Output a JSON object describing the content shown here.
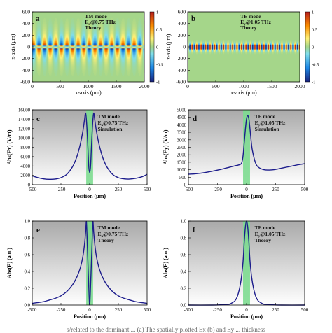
{
  "chart_data": [
    {
      "id": "a",
      "type": "heatmap",
      "panel_letter": "a",
      "annotation": [
        "TM mode",
        "Ex@0.75 THz",
        "Theory"
      ],
      "xlabel": "x-axis (μm)",
      "ylabel": "z-axis (μm)",
      "xlim": [
        0,
        2000
      ],
      "ylim": [
        -600,
        600
      ],
      "xticks": [
        "0",
        "500",
        "1000",
        "1500",
        "2000"
      ],
      "yticks": [
        "600",
        "400",
        "200",
        "0",
        "-200",
        "-400",
        "-600"
      ],
      "colorbar": {
        "min": -1,
        "max": 1,
        "ticks": [
          "1",
          "0.5",
          "0",
          "-0.5",
          "-1"
        ]
      },
      "field": {
        "period_um": 200,
        "phase_um": 20,
        "decay_um": 120,
        "core_um": 20,
        "profile": "antisymmetric"
      }
    },
    {
      "id": "b",
      "type": "heatmap",
      "panel_letter": "b",
      "annotation": [
        "TE mode",
        "Ey@1.05 THz",
        "Theory"
      ],
      "xlabel": "x-axis (μm)",
      "ylabel": "z-axis (μm)",
      "xlim": [
        0,
        2000
      ],
      "ylim": [
        -600,
        600
      ],
      "xticks": [
        "0",
        "500",
        "1000",
        "1500",
        "2000"
      ],
      "yticks": [
        "600",
        "400",
        "200",
        "0",
        "-200",
        "-400",
        "-600"
      ],
      "colorbar": {
        "min": -1,
        "max": 1,
        "ticks": [
          "1",
          "0.5",
          "0",
          "-0.5",
          "-1"
        ]
      },
      "field": {
        "period_um": 80,
        "phase_um": 0,
        "decay_um": 25,
        "core_um": 30,
        "profile": "symmetric"
      }
    },
    {
      "id": "c",
      "type": "line",
      "panel_letter": "c",
      "annotation": [
        "TM mode",
        "Ex@0.75 THz",
        "Simulation"
      ],
      "xlabel": "Position (μm)",
      "ylabel": "Abs(Ex) (V/m)",
      "xlim": [
        -500,
        500
      ],
      "ylim": [
        0,
        16000
      ],
      "xticks": [
        "-500",
        "-250",
        "0",
        "250",
        "500"
      ],
      "yticks": [
        "0",
        "2000",
        "4000",
        "6000",
        "8000",
        "10000",
        "12000",
        "14000",
        "16000"
      ],
      "highlight_x": [
        -30,
        30
      ],
      "x": [
        -500,
        -450,
        -400,
        -350,
        -300,
        -250,
        -200,
        -150,
        -120,
        -100,
        -80,
        -60,
        -45,
        -35,
        -25,
        -15,
        -8,
        0,
        8,
        15,
        25,
        35,
        45,
        60,
        80,
        100,
        120,
        150,
        200,
        250,
        300,
        350,
        400,
        450,
        500
      ],
      "y": [
        1900,
        1500,
        1250,
        1150,
        1200,
        1500,
        2200,
        3800,
        5400,
        6900,
        8800,
        11300,
        13800,
        15300,
        12700,
        7800,
        4000,
        2600,
        4000,
        7800,
        12700,
        15300,
        13800,
        11300,
        8800,
        6900,
        5400,
        3800,
        2200,
        1500,
        1250,
        1200,
        1350,
        1650,
        2200
      ]
    },
    {
      "id": "d",
      "type": "line",
      "panel_letter": "d",
      "annotation": [
        "TE mode",
        "Ey@1.05 THz",
        "Simulation"
      ],
      "xlabel": "Position (μm)",
      "ylabel": "Abs(Ey) (V/m)",
      "xlim": [
        -500,
        500
      ],
      "ylim": [
        0,
        5000
      ],
      "xticks": [
        "-500",
        "-250",
        "0",
        "250",
        "500"
      ],
      "yticks": [
        "0",
        "500",
        "1000",
        "1500",
        "2000",
        "2500",
        "3000",
        "3500",
        "4000",
        "4500",
        "5000"
      ],
      "highlight_x": [
        -30,
        30
      ],
      "x": [
        -500,
        -450,
        -400,
        -350,
        -300,
        -250,
        -200,
        -150,
        -100,
        -75,
        -50,
        -40,
        -30,
        -20,
        -10,
        0,
        10,
        20,
        30,
        40,
        50,
        75,
        100,
        150,
        200,
        250,
        300,
        350,
        400,
        450,
        500
      ],
      "y": [
        700,
        720,
        760,
        820,
        890,
        970,
        1060,
        1160,
        1260,
        1300,
        1370,
        1500,
        1950,
        2800,
        3700,
        4400,
        4620,
        4400,
        3700,
        2900,
        2300,
        1500,
        1180,
        1000,
        980,
        1020,
        1100,
        1180,
        1260,
        1340,
        1400
      ]
    },
    {
      "id": "e",
      "type": "line",
      "panel_letter": "e",
      "annotation": [
        "TM mode",
        "Ex@0.75 THz",
        "Theory"
      ],
      "xlabel": "Position (μm)",
      "ylabel": "Abs(E) (a.u.)",
      "xlim": [
        -500,
        500
      ],
      "ylim": [
        0,
        1.0
      ],
      "xticks": [
        "-500",
        "-250",
        "0",
        "250",
        "500"
      ],
      "yticks": [
        "0.0",
        "0.2",
        "0.4",
        "0.6",
        "0.8",
        "1.0"
      ],
      "highlight_x": [
        -30,
        30
      ],
      "x": [
        -500,
        -450,
        -400,
        -350,
        -300,
        -250,
        -200,
        -150,
        -120,
        -100,
        -80,
        -60,
        -45,
        -35,
        -28,
        -20,
        -12,
        -5,
        0,
        5,
        12,
        20,
        28,
        35,
        45,
        60,
        80,
        100,
        120,
        150,
        200,
        250,
        300,
        350,
        400,
        450,
        500
      ],
      "y": [
        0.02,
        0.03,
        0.04,
        0.06,
        0.08,
        0.11,
        0.16,
        0.24,
        0.31,
        0.37,
        0.45,
        0.57,
        0.72,
        0.87,
        0.99,
        0.7,
        0.38,
        0.12,
        0.0,
        0.12,
        0.38,
        0.7,
        0.99,
        0.87,
        0.72,
        0.57,
        0.45,
        0.37,
        0.31,
        0.24,
        0.16,
        0.11,
        0.08,
        0.06,
        0.04,
        0.03,
        0.02
      ]
    },
    {
      "id": "f",
      "type": "line",
      "panel_letter": "f",
      "annotation": [
        "TE mode",
        "Ey@1.05 THz",
        "Theory"
      ],
      "xlabel": "Position (μm)",
      "ylabel": "Abs(E) (a.u.)",
      "xlim": [
        -500,
        500
      ],
      "ylim": [
        0,
        1.0
      ],
      "xticks": [
        "-500",
        "-250",
        "0",
        "250",
        "500"
      ],
      "yticks": [
        "0.0",
        "0.2",
        "0.4",
        "0.6",
        "0.8",
        "1.0"
      ],
      "highlight_x": [
        -30,
        30
      ],
      "x": [
        -500,
        -300,
        -200,
        -150,
        -120,
        -100,
        -80,
        -60,
        -45,
        -30,
        -20,
        -10,
        0,
        10,
        20,
        30,
        45,
        60,
        80,
        100,
        120,
        150,
        200,
        300,
        500
      ],
      "y": [
        0.0,
        0.0,
        0.005,
        0.01,
        0.03,
        0.05,
        0.1,
        0.2,
        0.32,
        0.52,
        0.75,
        0.93,
        1.0,
        0.93,
        0.75,
        0.52,
        0.32,
        0.2,
        0.1,
        0.05,
        0.03,
        0.01,
        0.005,
        0.0,
        0.0
      ]
    }
  ],
  "colors": {
    "line": "#1c1c8c",
    "highlight": "#7ddc90",
    "positive": "#b4282b",
    "negative": "#27408b",
    "neutral": "#9bd08a"
  },
  "caption": "s/related to the dominant ... (a) The spatially plotted Ex (b) and Ey ... thickness"
}
